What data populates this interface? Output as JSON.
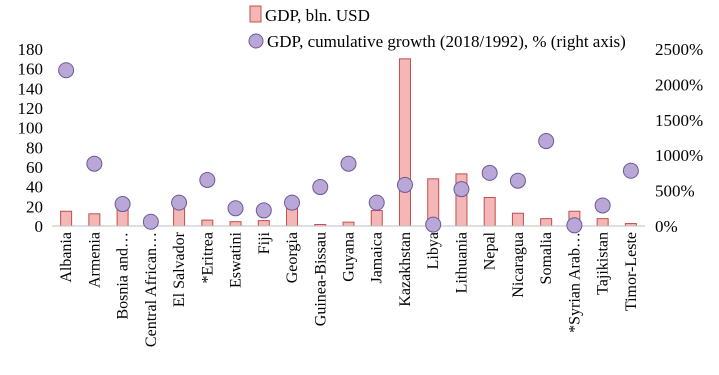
{
  "chart_data": {
    "type": "bar",
    "title": "",
    "xlabel": "",
    "ylabel": "",
    "categories": [
      "Albania",
      "Armenia",
      "Bosnia and…",
      "Central African…",
      "El Salvador",
      "*Eritrea",
      "Eswatini",
      "Fiji",
      "Georgia",
      "Guinea-Bissau",
      "Guyana",
      "Jamaica",
      "Kazakhstan",
      "Libya",
      "Lithuania",
      "Nepal",
      "Nicaragua",
      "Somalia",
      "*Syrian Arab…",
      "Tajikistan",
      "Timor-Leste"
    ],
    "series": [
      {
        "name": "GDP, bln. USD",
        "type": "bar",
        "axis": "left",
        "color": "#f4b6b6",
        "edge_color": "#c0504d",
        "values": [
          15,
          12.4,
          20,
          2.2,
          26,
          6,
          4.4,
          5.5,
          17.6,
          1.5,
          3.9,
          15.7,
          170,
          48,
          53,
          29,
          13,
          7.5,
          15,
          7.5,
          2.5
        ]
      },
      {
        "name": "GDP, cumulative growth (2018/1992), % (right axis)",
        "type": "scatter",
        "axis": "right",
        "color": "#b9a7d8",
        "edge_color": "#6b5b95",
        "values": [
          2200,
          880,
          310,
          60,
          330,
          650,
          250,
          220,
          330,
          550,
          880,
          330,
          580,
          20,
          520,
          750,
          640,
          1200,
          10,
          290,
          780
        ]
      }
    ],
    "y_left": {
      "ylim": [
        0,
        180
      ],
      "ticks": [
        0,
        20,
        40,
        60,
        80,
        100,
        120,
        140,
        160,
        180
      ]
    },
    "y_right": {
      "ylim": [
        0,
        2500
      ],
      "ticks": [
        0,
        500,
        1000,
        1500,
        2000,
        2500
      ],
      "tick_suffix": "%"
    },
    "grid": false,
    "legend": {
      "placement": "top-center"
    }
  }
}
